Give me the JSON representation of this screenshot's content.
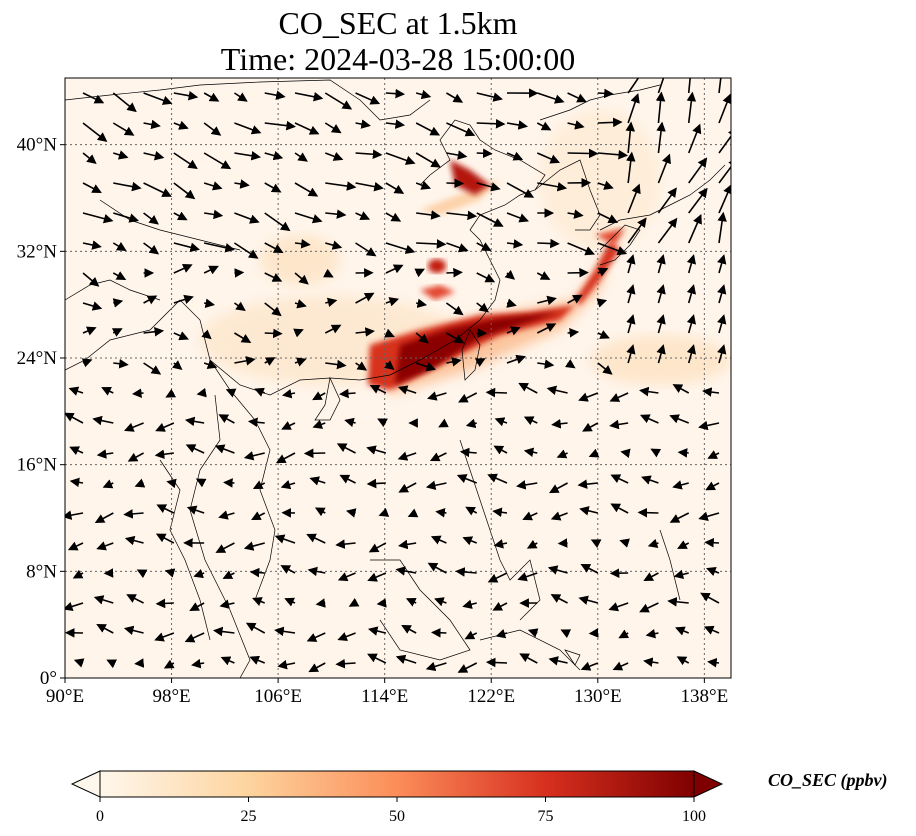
{
  "title": {
    "line1": "CO_SEC at 1.5km",
    "line2": "Time: 2024-03-28 15:00:00"
  },
  "map": {
    "extent": {
      "lon": [
        90,
        140
      ],
      "lat": [
        0,
        45
      ]
    },
    "lon_ticks": [
      "90°E",
      "98°E",
      "106°E",
      "114°E",
      "122°E",
      "130°E",
      "138°E"
    ],
    "lon_tick_values": [
      90,
      98,
      106,
      114,
      122,
      130,
      138
    ],
    "lat_ticks": [
      "0°",
      "8°N",
      "16°N",
      "24°N",
      "32°N",
      "40°N"
    ],
    "lat_tick_values": [
      0,
      8,
      16,
      24,
      32,
      40
    ],
    "gridlines": true,
    "background_color": "#fff5eb",
    "plume_color": "#8b0000"
  },
  "colorbar": {
    "label": "CO_SEC (ppbv)",
    "ticks": [
      "0",
      "25",
      "50",
      "75",
      "100"
    ],
    "tick_values": [
      0,
      25,
      50,
      75,
      100
    ],
    "range": [
      0,
      100
    ],
    "cmap": "OrRd",
    "extend": "both"
  }
}
